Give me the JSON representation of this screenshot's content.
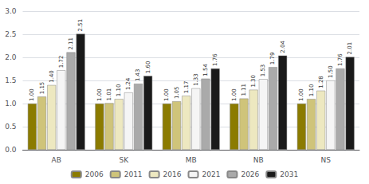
{
  "chart_data": {
    "type": "bar",
    "categories": [
      "AB",
      "SK",
      "MB",
      "NB",
      "NS"
    ],
    "series": [
      {
        "name": "2006",
        "color": "#8B7B00",
        "values": [
          1.0,
          1.0,
          1.0,
          1.0,
          1.0
        ],
        "value_labels": [
          "1.00",
          "1.00",
          "1.00",
          "1.00",
          "1.00"
        ]
      },
      {
        "name": "2011",
        "color": "#CFC47A",
        "values": [
          1.15,
          1.01,
          1.05,
          1.11,
          1.1
        ],
        "value_labels": [
          "1.15",
          "1.01",
          "1.05",
          "1.11",
          "1.10"
        ]
      },
      {
        "name": "2016",
        "color": "#EDE8C0",
        "values": [
          1.4,
          1.1,
          1.17,
          1.3,
          1.28
        ],
        "value_labels": [
          "1.40",
          "1.10",
          "1.17",
          "1.30",
          "1.28"
        ]
      },
      {
        "name": "2021",
        "color": "#F5F5F5",
        "values": [
          1.72,
          1.24,
          1.33,
          1.53,
          1.5
        ],
        "value_labels": [
          "1.72",
          "1.24",
          "1.33",
          "1.53",
          "1.50"
        ]
      },
      {
        "name": "2026",
        "color": "#AAAAAA",
        "values": [
          2.11,
          1.43,
          1.54,
          1.79,
          1.76
        ],
        "value_labels": [
          "2.11",
          "1.43",
          "1.54",
          "1.79",
          "1.76"
        ]
      },
      {
        "name": "2031",
        "color": "#1A1A1A",
        "values": [
          2.51,
          1.6,
          1.76,
          2.04,
          2.01
        ],
        "value_labels": [
          "2.51",
          "1.60",
          "1.76",
          "2.04",
          "2.01"
        ]
      }
    ],
    "ylim": [
      0,
      3
    ],
    "yticks": [
      {
        "value": 0,
        "label": "0.0"
      },
      0.5,
      {
        "value": 1,
        "label": "1.0"
      },
      1.5,
      {
        "value": 2,
        "label": "2.0"
      },
      2.5,
      {
        "value": 3,
        "label": "3.0"
      }
    ],
    "grid": true,
    "legend": "bottom",
    "data_labels": true
  }
}
